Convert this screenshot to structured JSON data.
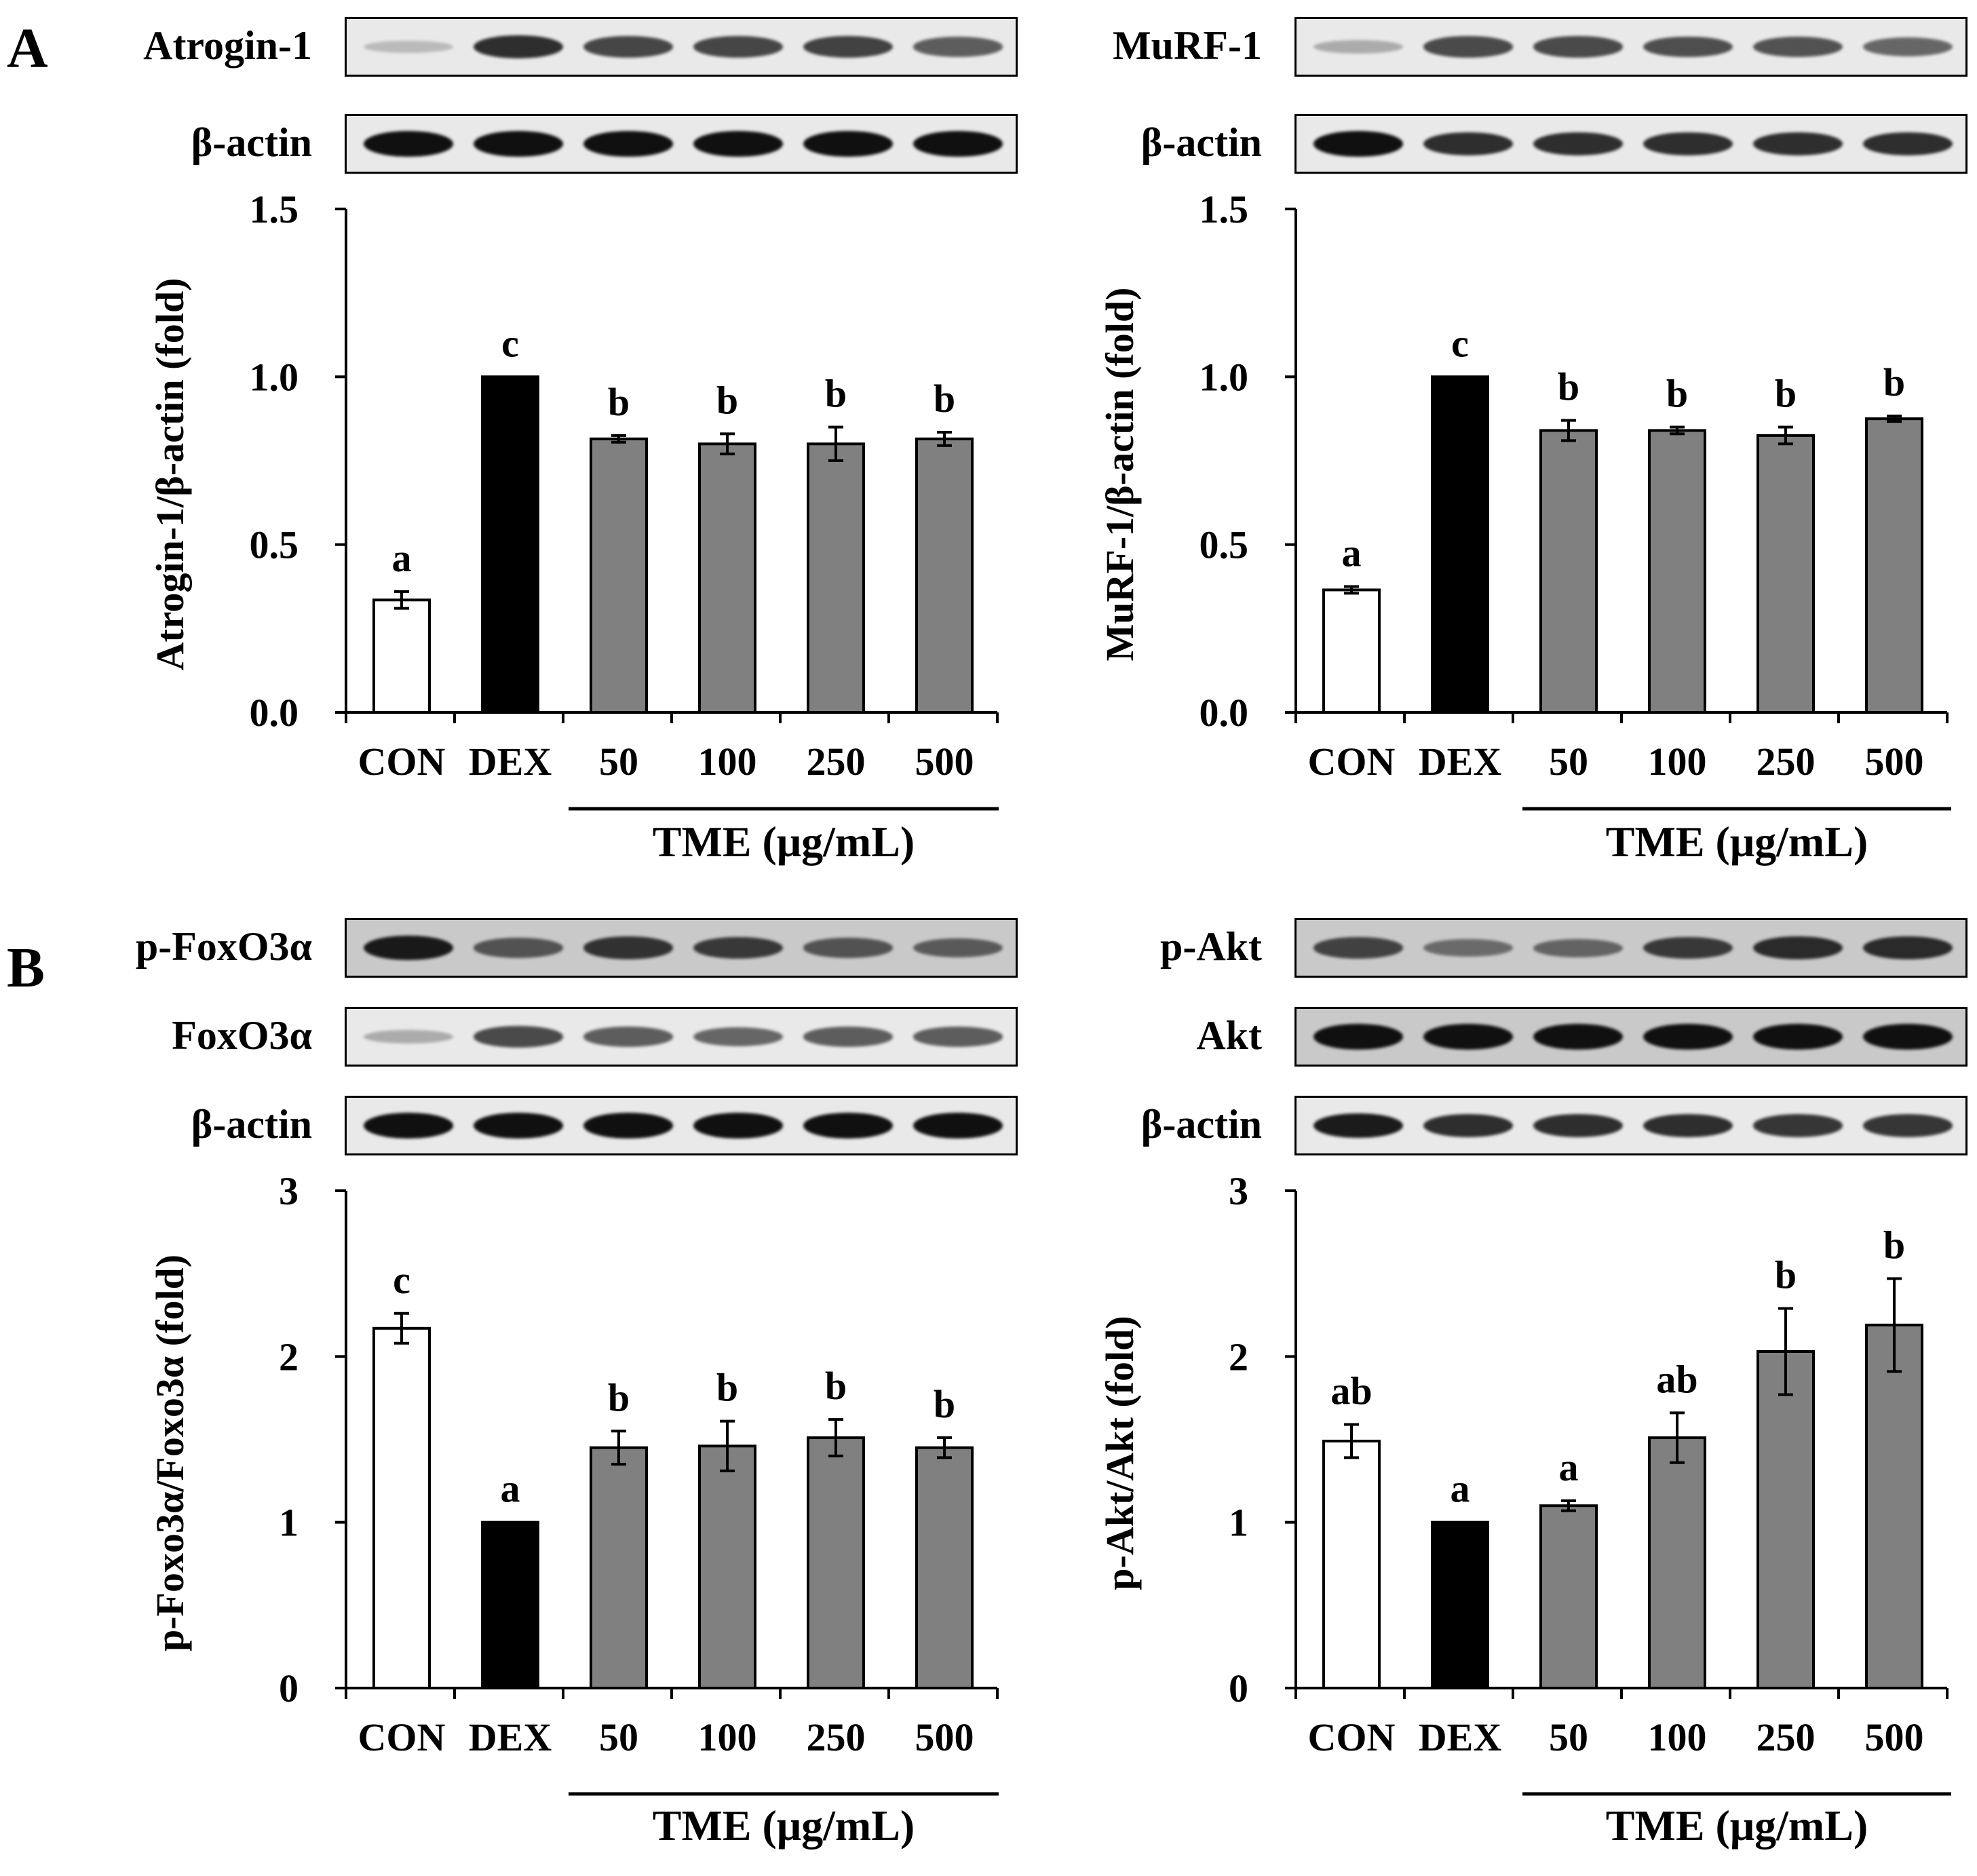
{
  "figure": {
    "panel_letters": [
      "A",
      "B"
    ]
  },
  "colors": {
    "con": "#ffffff",
    "dex": "#000000",
    "tme": "#808080",
    "blot_light": "#e9e9e9",
    "blot_dark": "#c9c9c9",
    "band": "#101010"
  },
  "blots": [
    {
      "label": "Atrogin-1",
      "tone": "light",
      "intensity": [
        0.12,
        0.85,
        0.72,
        0.72,
        0.74,
        0.6
      ]
    },
    {
      "label": "β-actin",
      "tone": "light",
      "intensity": [
        1,
        1,
        1,
        1,
        1,
        1
      ]
    },
    {
      "label": "MuRF-1",
      "tone": "light",
      "intensity": [
        0.2,
        0.7,
        0.7,
        0.68,
        0.65,
        0.55
      ]
    },
    {
      "label": "β-actin",
      "tone": "light",
      "intensity": [
        1,
        0.85,
        0.85,
        0.85,
        0.85,
        0.85
      ]
    },
    {
      "label": "p-FoxO3α",
      "tone": "dark",
      "intensity": [
        0.95,
        0.6,
        0.8,
        0.75,
        0.6,
        0.55
      ]
    },
    {
      "label": "FoxO3α",
      "tone": "light",
      "intensity": [
        0.2,
        0.7,
        0.6,
        0.55,
        0.6,
        0.6
      ]
    },
    {
      "label": "β-actin",
      "tone": "light",
      "intensity": [
        1,
        1,
        1,
        1,
        1,
        1
      ]
    },
    {
      "label": "p-Akt",
      "tone": "dark",
      "intensity": [
        0.7,
        0.45,
        0.5,
        0.75,
        0.85,
        0.85
      ]
    },
    {
      "label": "Akt",
      "tone": "dark",
      "intensity": [
        1,
        1,
        1,
        1,
        1,
        1
      ]
    },
    {
      "label": "β-actin",
      "tone": "light",
      "intensity": [
        0.95,
        0.85,
        0.85,
        0.85,
        0.8,
        0.8
      ]
    }
  ],
  "chart_data": [
    {
      "type": "bar",
      "title": "",
      "ylabel": "Atrogin-1/β-actin (fold)",
      "categories": [
        "CON",
        "DEX",
        "50",
        "100",
        "250",
        "500"
      ],
      "group_label": "TME (μg/mL)",
      "values": [
        0.335,
        1.0,
        0.815,
        0.8,
        0.8,
        0.815
      ],
      "errors": [
        0.025,
        0.0,
        0.01,
        0.03,
        0.05,
        0.02
      ],
      "letters": [
        "a",
        "c",
        "b",
        "b",
        "b",
        "b"
      ],
      "ylim": [
        0,
        1.5
      ],
      "yticks": [
        "0.0",
        "0.5",
        "1.0",
        "1.5"
      ]
    },
    {
      "type": "bar",
      "title": "",
      "ylabel": "MuRF-1/β-actin (fold)",
      "categories": [
        "CON",
        "DEX",
        "50",
        "100",
        "250",
        "500"
      ],
      "group_label": "TME (μg/mL)",
      "values": [
        0.365,
        1.0,
        0.84,
        0.84,
        0.825,
        0.875
      ],
      "errors": [
        0.01,
        0.0,
        0.03,
        0.01,
        0.025,
        0.008
      ],
      "letters": [
        "a",
        "c",
        "b",
        "b",
        "b",
        "b"
      ],
      "ylim": [
        0,
        1.5
      ],
      "yticks": [
        "0.0",
        "0.5",
        "1.0",
        "1.5"
      ]
    },
    {
      "type": "bar",
      "title": "",
      "ylabel": "p-Foxo3α/Foxo3α (fold)",
      "categories": [
        "CON",
        "DEX",
        "50",
        "100",
        "250",
        "500"
      ],
      "group_label": "TME (μg/mL)",
      "values": [
        2.17,
        1.0,
        1.45,
        1.46,
        1.51,
        1.45
      ],
      "errors": [
        0.09,
        0.0,
        0.1,
        0.15,
        0.11,
        0.06
      ],
      "letters": [
        "c",
        "a",
        "b",
        "b",
        "b",
        "b"
      ],
      "ylim": [
        0,
        3
      ],
      "yticks": [
        "0",
        "1",
        "2",
        "3"
      ]
    },
    {
      "type": "bar",
      "title": "",
      "ylabel": "p-Akt/Akt (fold)",
      "categories": [
        "CON",
        "DEX",
        "50",
        "100",
        "250",
        "500"
      ],
      "group_label": "TME (μg/mL)",
      "values": [
        1.49,
        1.0,
        1.1,
        1.51,
        2.03,
        2.19
      ],
      "errors": [
        0.1,
        0.0,
        0.03,
        0.15,
        0.26,
        0.28
      ],
      "letters": [
        "ab",
        "a",
        "a",
        "ab",
        "b",
        "b"
      ],
      "ylim": [
        0,
        3
      ],
      "yticks": [
        "0",
        "1",
        "2",
        "3"
      ]
    }
  ]
}
